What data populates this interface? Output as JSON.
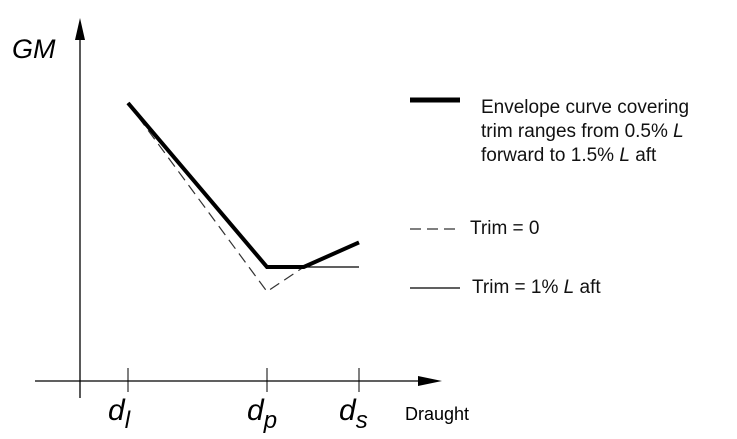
{
  "chart_data": {
    "type": "line",
    "ylabel": "GM",
    "xlabel": "Draught",
    "x_ticks": [
      {
        "sym": "d",
        "sub": "l"
      },
      {
        "sym": "d",
        "sub": "p"
      },
      {
        "sym": "d",
        "sub": "s"
      }
    ],
    "x": [
      0,
      1,
      2
    ],
    "series": [
      {
        "name": "Envelope curve covering trim ranges from 0.5% L forward to 1.5% L aft",
        "style": "thick-solid",
        "points": [
          [
            0,
            1.0
          ],
          [
            1,
            0.0
          ],
          [
            1.4,
            0.0
          ],
          [
            2,
            0.15
          ]
        ]
      },
      {
        "name": "Trim = 0",
        "style": "dashed",
        "points": [
          [
            0,
            1.0
          ],
          [
            1,
            -0.15
          ],
          [
            1.4,
            0.0
          ]
        ]
      },
      {
        "name": "Trim = 1% L aft",
        "style": "thin-solid",
        "points": [
          [
            0,
            1.0
          ],
          [
            1,
            0.0
          ],
          [
            2,
            0.0
          ]
        ]
      }
    ],
    "legend": {
      "position": "right",
      "items": [
        {
          "style": "thick-solid",
          "lines": [
            [
              {
                "t": "Envelope curve covering"
              }
            ],
            [
              {
                "t": "trim ranges from 0.5% "
              },
              {
                "t": "L",
                "i": true
              }
            ],
            [
              {
                "t": "forward to 1.5% "
              },
              {
                "t": "L",
                "i": true
              },
              {
                "t": " aft"
              }
            ]
          ]
        },
        {
          "style": "dashed",
          "lines": [
            [
              {
                "t": "Trim = 0"
              }
            ]
          ]
        },
        {
          "style": "thin-solid",
          "lines": [
            [
              {
                "t": "Trim = 1% "
              },
              {
                "t": "L",
                "i": true
              },
              {
                "t": " aft"
              }
            ]
          ]
        }
      ]
    },
    "grid": false
  }
}
